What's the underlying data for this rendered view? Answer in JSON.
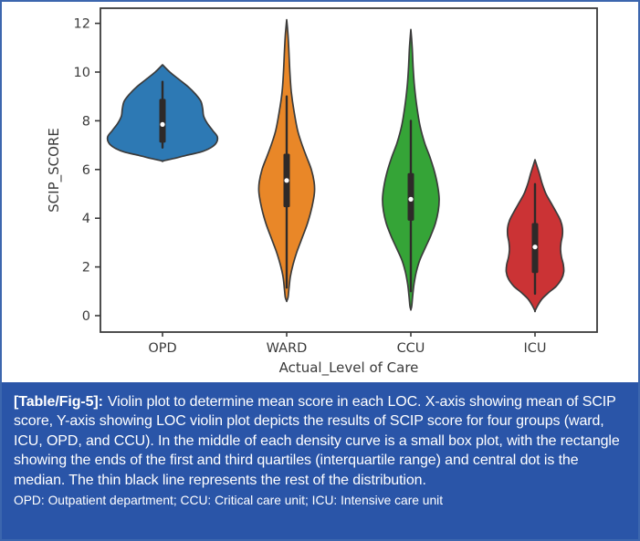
{
  "figure": {
    "caption": {
      "label": "[Table/Fig-5]:",
      "text": "Violin plot to determine mean score in each LOC. X-axis showing mean of SCIP score, Y-axis showing LOC violin plot depicts the results of SCIP score for four groups (ward, ICU, OPD, and CCU). In the middle of each density curve is a small box plot, with the rectangle showing the ends of the first and third quartiles (interquartile range) and central dot is the median. The thin black line represents the rest of the distribution.",
      "footnote": "OPD: Outpatient department; CCU: Critical care unit; ICU: Intensive care unit"
    },
    "colors": {
      "caption_background": "#2a55a8",
      "frame_border": "#3c66ae",
      "axis": "#3a3a3a",
      "inner_box": "#2e2a29",
      "median_dot": "#ffffff"
    }
  },
  "chart_data": {
    "type": "violin",
    "title": "",
    "xlabel": "Actual_Level of Care",
    "ylabel": "SCIP_SCORE",
    "yticks": [
      0,
      2,
      4,
      6,
      8,
      10,
      12
    ],
    "ylim": [
      -0.67,
      12.6
    ],
    "grid": false,
    "legend": "none",
    "categories": [
      "OPD",
      "WARD",
      "CCU",
      "ICU"
    ],
    "series": [
      {
        "name": "OPD",
        "color": "#2d79b4",
        "min": 6.35,
        "max": 10.3,
        "q1": 7.1,
        "median": 7.85,
        "q3": 8.9,
        "whisker_low": 6.9,
        "whisker_high": 9.6,
        "profile": [
          [
            10.3,
            0
          ],
          [
            10.0,
            8
          ],
          [
            9.7,
            18
          ],
          [
            9.4,
            28
          ],
          [
            9.1,
            36
          ],
          [
            8.8,
            42
          ],
          [
            8.5,
            44
          ],
          [
            8.2,
            45
          ],
          [
            7.9,
            49
          ],
          [
            7.6,
            55
          ],
          [
            7.35,
            60
          ],
          [
            7.1,
            59
          ],
          [
            6.9,
            53
          ],
          [
            6.72,
            42
          ],
          [
            6.58,
            26
          ],
          [
            6.45,
            12
          ],
          [
            6.35,
            0
          ]
        ]
      },
      {
        "name": "WARD",
        "color": "#e98728",
        "min": 0.6,
        "max": 12.15,
        "q1": 4.45,
        "median": 5.55,
        "q3": 6.65,
        "whisker_low": 1.15,
        "whisker_high": 9.0,
        "profile": [
          [
            12.15,
            0
          ],
          [
            11.5,
            1.5
          ],
          [
            10.8,
            2.5
          ],
          [
            10.0,
            3.5
          ],
          [
            9.2,
            5
          ],
          [
            8.4,
            8
          ],
          [
            7.6,
            12
          ],
          [
            7.0,
            17
          ],
          [
            6.5,
            22
          ],
          [
            6.0,
            27
          ],
          [
            5.5,
            30
          ],
          [
            5.1,
            30.5
          ],
          [
            4.7,
            29
          ],
          [
            4.2,
            26
          ],
          [
            3.7,
            22
          ],
          [
            3.1,
            16
          ],
          [
            2.6,
            11
          ],
          [
            2.1,
            7
          ],
          [
            1.6,
            4
          ],
          [
            1.1,
            2.5
          ],
          [
            0.75,
            1.5
          ],
          [
            0.6,
            0
          ]
        ]
      },
      {
        "name": "CCU",
        "color": "#35a437",
        "min": 0.25,
        "max": 11.75,
        "q1": 3.9,
        "median": 4.78,
        "q3": 5.85,
        "whisker_low": 1.0,
        "whisker_high": 8.0,
        "profile": [
          [
            11.75,
            0
          ],
          [
            11.0,
            1.5
          ],
          [
            10.2,
            2.5
          ],
          [
            9.4,
            4
          ],
          [
            8.6,
            6.5
          ],
          [
            7.8,
            10
          ],
          [
            7.1,
            15
          ],
          [
            6.5,
            21
          ],
          [
            5.9,
            26
          ],
          [
            5.3,
            29.5
          ],
          [
            4.8,
            31
          ],
          [
            4.3,
            30
          ],
          [
            3.8,
            27
          ],
          [
            3.3,
            22
          ],
          [
            2.8,
            16
          ],
          [
            2.3,
            10
          ],
          [
            1.8,
            6
          ],
          [
            1.3,
            3.5
          ],
          [
            0.8,
            2
          ],
          [
            0.4,
            1
          ],
          [
            0.25,
            0
          ]
        ]
      },
      {
        "name": "ICU",
        "color": "#cb3335",
        "min": 0.2,
        "max": 6.4,
        "q1": 1.75,
        "median": 2.82,
        "q3": 3.8,
        "whisker_low": 0.9,
        "whisker_high": 5.4,
        "profile": [
          [
            6.4,
            0
          ],
          [
            6.1,
            2.5
          ],
          [
            5.8,
            5
          ],
          [
            5.4,
            8
          ],
          [
            5.0,
            12
          ],
          [
            4.6,
            18
          ],
          [
            4.2,
            24
          ],
          [
            3.9,
            28
          ],
          [
            3.6,
            30
          ],
          [
            3.3,
            30
          ],
          [
            3.0,
            28.5
          ],
          [
            2.7,
            28
          ],
          [
            2.4,
            29
          ],
          [
            2.1,
            31
          ],
          [
            1.8,
            31.5
          ],
          [
            1.5,
            29
          ],
          [
            1.2,
            23
          ],
          [
            0.95,
            15
          ],
          [
            0.7,
            8
          ],
          [
            0.45,
            3.5
          ],
          [
            0.2,
            0
          ]
        ]
      }
    ]
  }
}
